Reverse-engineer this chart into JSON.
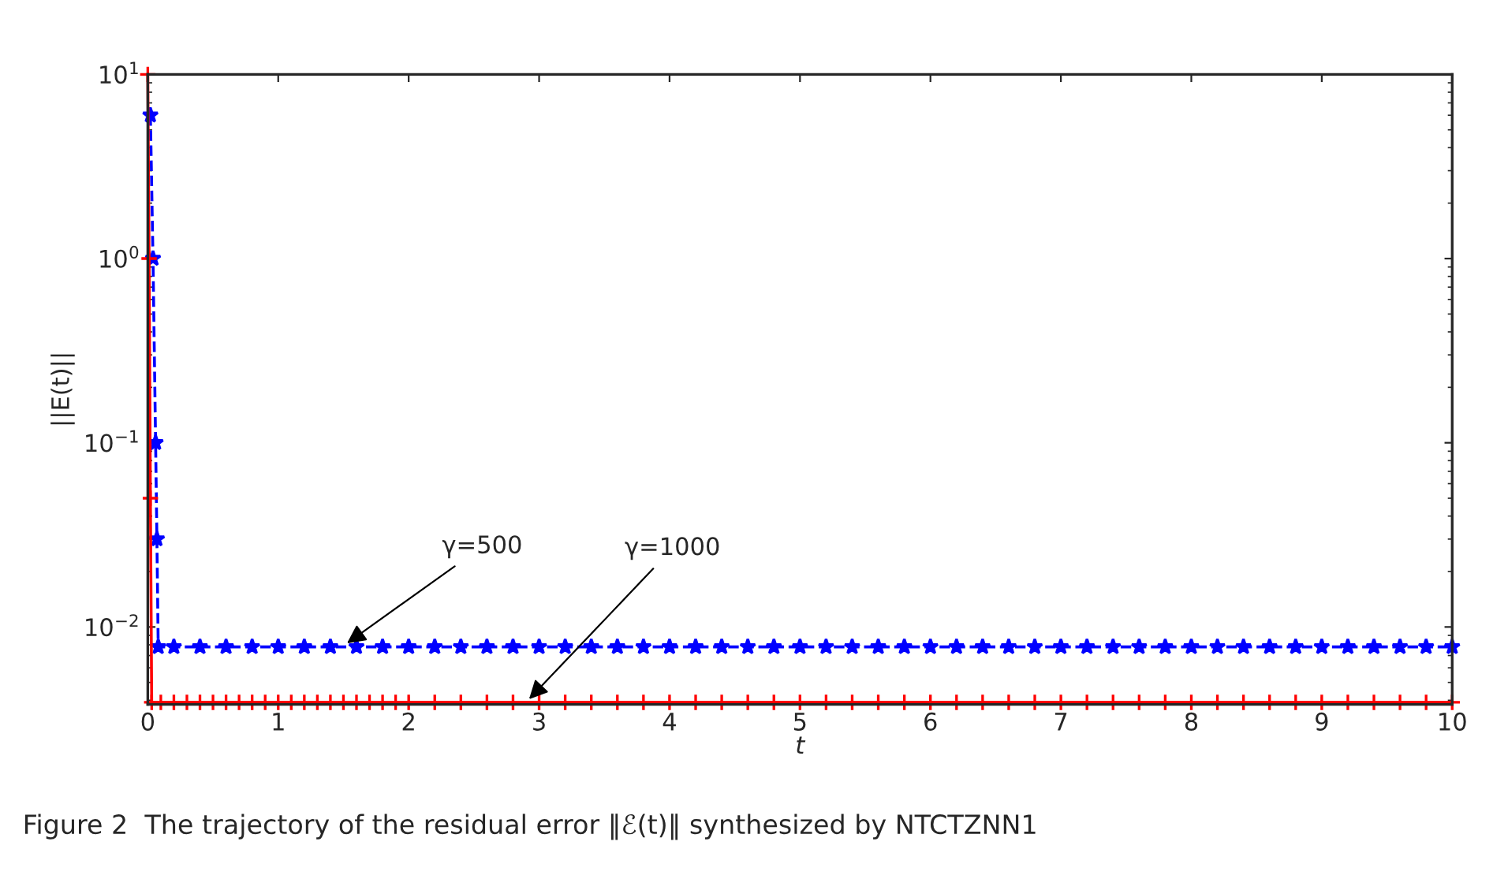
{
  "chart_data": {
    "type": "line",
    "xlabel": "t",
    "ylabel": "||E(t)||",
    "log": "y",
    "xlim": [
      0,
      10
    ],
    "xticks": [
      0,
      1,
      2,
      3,
      4,
      5,
      6,
      7,
      8,
      9,
      10
    ],
    "ylim": [
      0.0038,
      10
    ],
    "yticks": [
      {
        "value": 0.01,
        "label": "10$^{−2}$"
      },
      {
        "value": 0.1,
        "label": "10$^{−1}$"
      },
      {
        "value": 1,
        "label": "10$^{0}$"
      },
      {
        "value": 10,
        "label": "10$^{1}$"
      }
    ],
    "grid": false,
    "legend": false,
    "series": [
      {
        "color": "#0000ff",
        "line_style": "dashed",
        "marker": "star",
        "x": [
          0.02,
          0.04,
          0.06,
          0.07,
          0.08,
          0.2,
          0.4,
          0.6,
          0.8,
          1.0,
          1.2,
          1.4,
          1.6,
          1.8,
          2.0,
          2.2,
          2.4,
          2.6,
          2.8,
          3.0,
          3.2,
          3.4,
          3.6,
          3.8,
          4.0,
          4.2,
          4.4,
          4.6,
          4.8,
          5.0,
          5.2,
          5.4,
          5.6,
          5.8,
          6.0,
          6.2,
          6.4,
          6.6,
          6.8,
          7.0,
          7.2,
          7.4,
          7.6,
          7.8,
          8.0,
          8.2,
          8.4,
          8.6,
          8.8,
          9.0,
          9.2,
          9.4,
          9.6,
          9.8,
          10.0
        ],
        "values": [
          6,
          1,
          0.1,
          0.03,
          0.0078,
          0.0078,
          0.0078,
          0.0078,
          0.0078,
          0.0078,
          0.0078,
          0.0078,
          0.0078,
          0.0078,
          0.0078,
          0.0078,
          0.0078,
          0.0078,
          0.0078,
          0.0078,
          0.0078,
          0.0078,
          0.0078,
          0.0078,
          0.0078,
          0.0078,
          0.0078,
          0.0078,
          0.0078,
          0.0078,
          0.0078,
          0.0078,
          0.0078,
          0.0078,
          0.0078,
          0.0078,
          0.0078,
          0.0078,
          0.0078,
          0.0078,
          0.0078,
          0.0078,
          0.0078,
          0.0078,
          0.0078,
          0.0078,
          0.0078,
          0.0078,
          0.0078,
          0.0078,
          0.0078,
          0.0078,
          0.0078,
          0.0078,
          0.0078
        ]
      },
      {
        "color": "#ff0000",
        "line_style": "solid",
        "marker": "cross",
        "x": [
          0,
          0.01,
          0.02,
          0.03,
          0.1,
          0.2,
          0.3,
          0.4,
          0.5,
          0.6,
          0.7,
          0.8,
          0.9,
          1.0,
          1.1,
          1.2,
          1.3,
          1.4,
          1.5,
          1.6,
          1.7,
          1.8,
          1.9,
          2.0,
          2.2,
          2.4,
          2.6,
          2.8,
          3.0,
          3.2,
          3.4,
          3.6,
          3.8,
          4.0,
          4.2,
          4.4,
          4.6,
          4.8,
          5.0,
          5.2,
          5.4,
          5.6,
          5.8,
          6.0,
          6.2,
          6.4,
          6.6,
          6.8,
          7.0,
          7.2,
          7.4,
          7.6,
          7.8,
          8.0,
          8.2,
          8.4,
          8.6,
          8.8,
          9.0,
          9.2,
          9.4,
          9.6,
          9.8,
          10.0
        ],
        "values": [
          10,
          1,
          0.05,
          0.0039,
          0.0039,
          0.0039,
          0.0039,
          0.0039,
          0.0039,
          0.0039,
          0.0039,
          0.0039,
          0.0039,
          0.0039,
          0.0039,
          0.0039,
          0.0039,
          0.0039,
          0.0039,
          0.0039,
          0.0039,
          0.0039,
          0.0039,
          0.0039,
          0.0039,
          0.0039,
          0.0039,
          0.0039,
          0.0039,
          0.0039,
          0.0039,
          0.0039,
          0.0039,
          0.0039,
          0.0039,
          0.0039,
          0.0039,
          0.0039,
          0.0039,
          0.0039,
          0.0039,
          0.0039,
          0.0039,
          0.0039,
          0.0039,
          0.0039,
          0.0039,
          0.0039,
          0.0039,
          0.0039,
          0.0039,
          0.0039,
          0.0039,
          0.0039,
          0.0039,
          0.0039,
          0.0039,
          0.0039,
          0.0039,
          0.0039,
          0.0039,
          0.0039,
          0.0039,
          0.0039
        ]
      }
    ],
    "annotations": [
      {
        "text": "γ=500",
        "x": 1.5,
        "y": 0.0079
      },
      {
        "text": "γ=1000",
        "x": 2.9,
        "y": 0.0039
      },
      "Figure 2  The trajectory of the residual error ‖ℰ(t)‖ synthesized by NTCTZNN1"
    ]
  }
}
